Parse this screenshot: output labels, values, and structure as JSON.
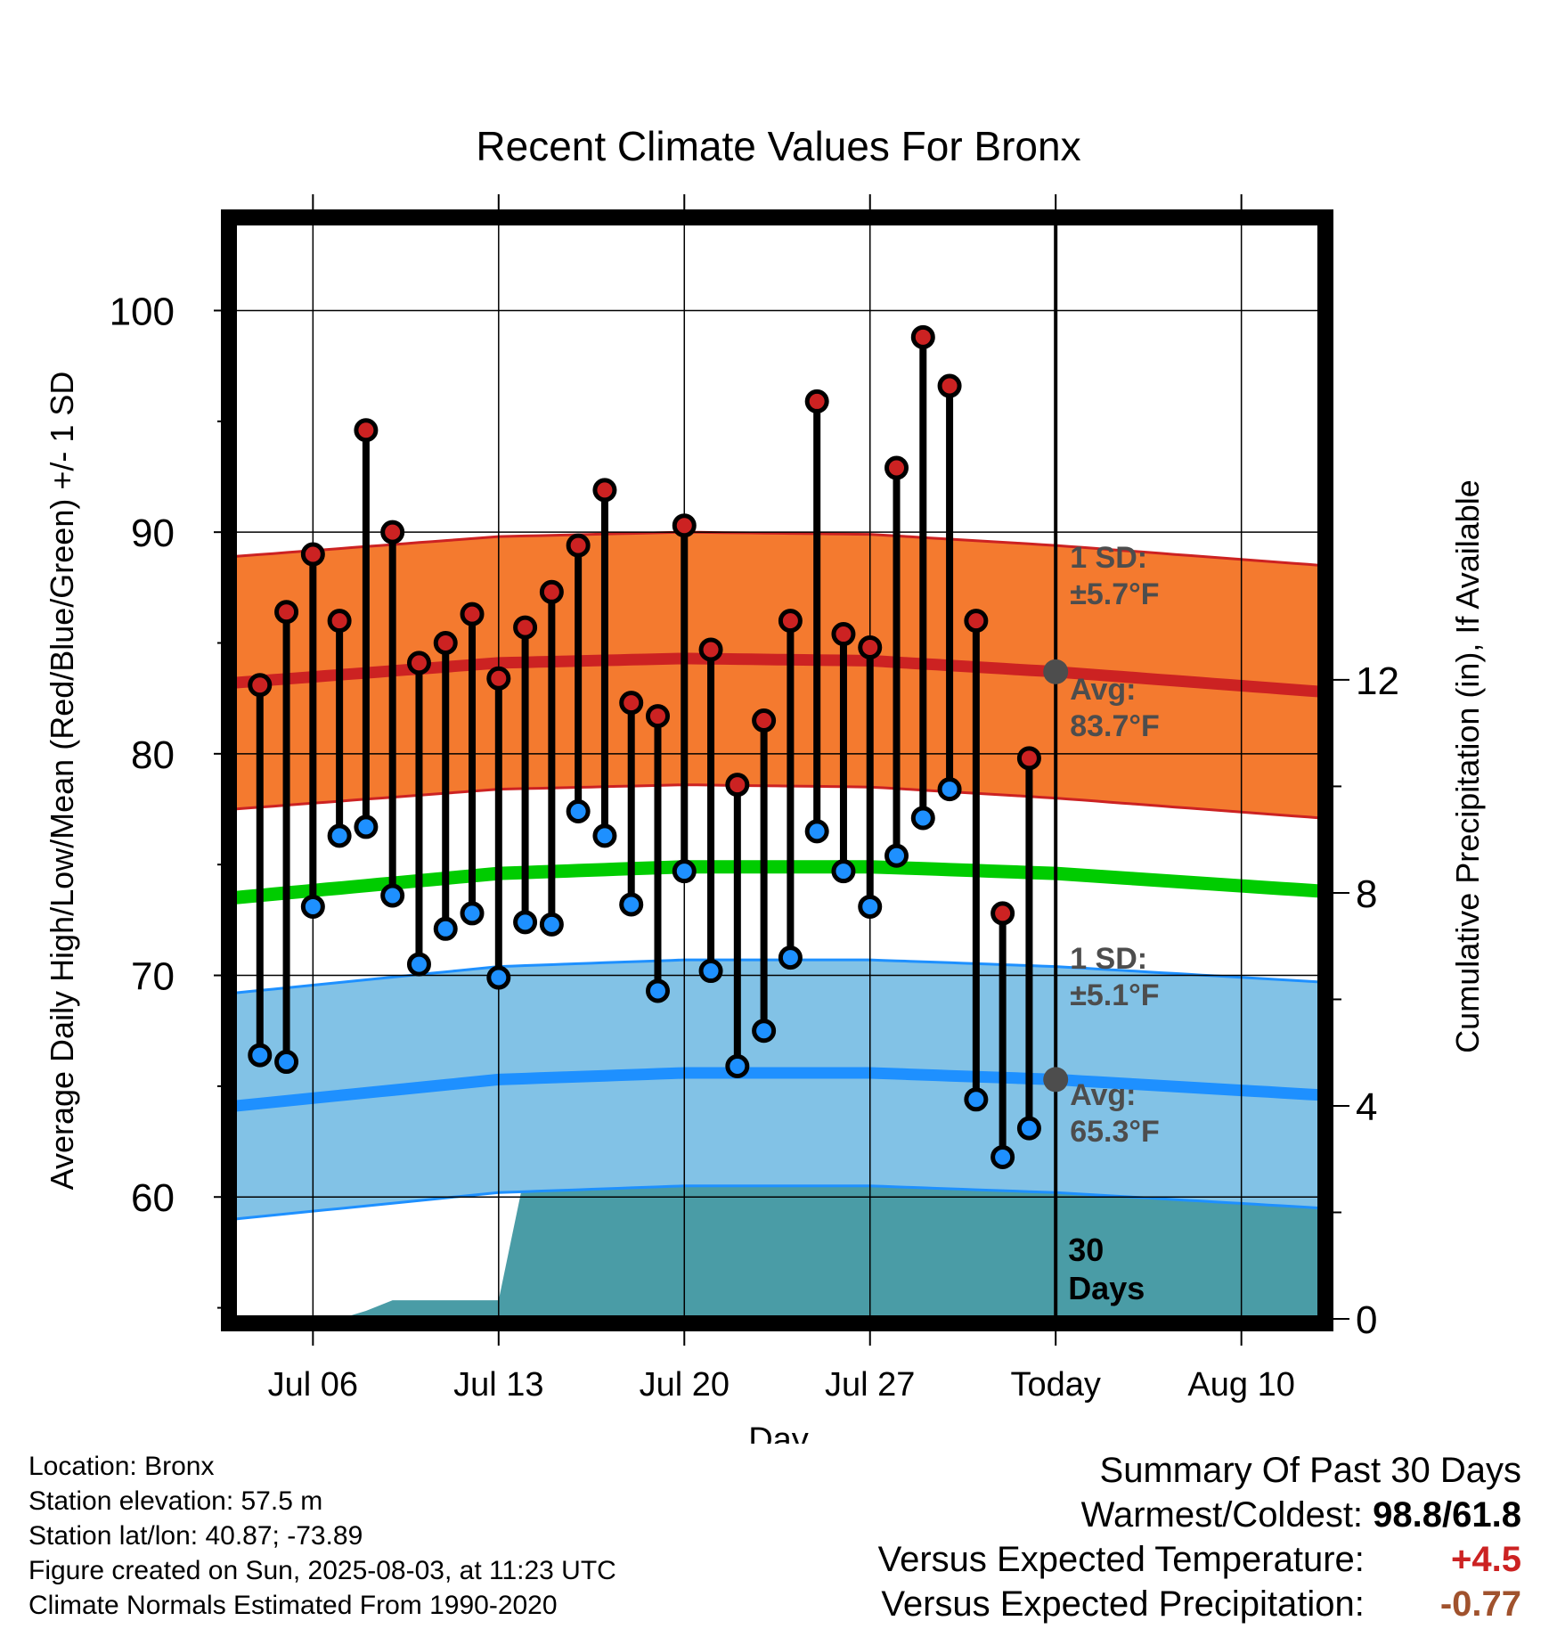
{
  "chart_data": {
    "type": "line",
    "title": "Recent Climate Values For Bronx",
    "xlabel": "Day",
    "ylabel": "Average Daily High/Low/Mean (Red/Blue/Green) +/- 1 SD",
    "y2label": "Cumulative Precipitation (in), If Available",
    "ylim": [
      54.5,
      104
    ],
    "y2lim": [
      0,
      20.6
    ],
    "yticks": [
      60,
      70,
      80,
      90,
      100
    ],
    "y2ticks": [
      0,
      4,
      8,
      12
    ],
    "xticks": [
      "Jul 06",
      "Jul 13",
      "Jul 20",
      "Jul 27",
      "Today",
      "Aug 10"
    ],
    "today_label": "30\nDays",
    "days": [
      "Jul 04",
      "Jul 05",
      "Jul 06",
      "Jul 07",
      "Jul 08",
      "Jul 09",
      "Jul 10",
      "Jul 11",
      "Jul 12",
      "Jul 13",
      "Jul 14",
      "Jul 15",
      "Jul 16",
      "Jul 17",
      "Jul 18",
      "Jul 19",
      "Jul 20",
      "Jul 21",
      "Jul 22",
      "Jul 23",
      "Jul 24",
      "Jul 25",
      "Jul 26",
      "Jul 27",
      "Jul 28",
      "Jul 29",
      "Jul 30",
      "Jul 31",
      "Aug 01",
      "Aug 02"
    ],
    "highs": [
      83.1,
      86.4,
      89.0,
      86.0,
      94.6,
      90.0,
      84.1,
      85.0,
      86.3,
      83.4,
      85.7,
      87.3,
      89.4,
      91.9,
      82.3,
      81.7,
      90.3,
      84.7,
      78.6,
      81.5,
      86.0,
      95.9,
      85.4,
      84.8,
      92.9,
      98.8,
      96.6,
      86.0,
      72.8,
      79.8
    ],
    "lows": [
      66.4,
      66.1,
      73.1,
      76.3,
      76.7,
      73.6,
      70.5,
      72.1,
      72.8,
      69.9,
      72.4,
      72.3,
      77.4,
      76.3,
      73.2,
      69.3,
      74.7,
      70.2,
      65.9,
      67.5,
      70.8,
      76.5,
      74.7,
      73.1,
      75.4,
      77.1,
      78.4,
      64.4,
      61.8,
      63.1
    ],
    "normal_high": {
      "x": [
        "Jul 03",
        "Jul 13",
        "Jul 20",
        "Jul 27",
        "Aug 03",
        "Aug 13"
      ],
      "values": [
        83.2,
        84.1,
        84.3,
        84.2,
        83.7,
        82.8
      ]
    },
    "normal_low": {
      "x": [
        "Jul 03",
        "Jul 13",
        "Jul 20",
        "Jul 27",
        "Aug 03",
        "Aug 13"
      ],
      "values": [
        64.1,
        65.3,
        65.6,
        65.6,
        65.3,
        64.6
      ]
    },
    "normal_mean": {
      "x": [
        "Jul 03",
        "Jul 13",
        "Jul 20",
        "Jul 27",
        "Aug 03",
        "Aug 13"
      ],
      "values": [
        73.5,
        74.6,
        74.9,
        74.9,
        74.6,
        73.8
      ]
    },
    "high_sd": 5.7,
    "low_sd": 5.1,
    "precip_cumulative": {
      "x": [
        "Jul 03",
        "Jul 07",
        "Jul 08",
        "Jul 09",
        "Jul 12",
        "Jul 13",
        "Jul 14",
        "Jul 20",
        "Jul 26",
        "Jul 27",
        "Jul 30",
        "Jul 31",
        "Aug 03",
        "Aug 13"
      ],
      "values": [
        0,
        0,
        0.15,
        0.35,
        0.35,
        0.35,
        2.75,
        2.75,
        2.75,
        2.85,
        2.85,
        3.2,
        3.2,
        3.2
      ]
    },
    "annotations": {
      "high_sd_label": "1 SD:",
      "high_sd_value": "±5.7°F",
      "high_avg_label": "Avg:",
      "high_avg_value": "83.7°F",
      "low_sd_label": "1 SD:",
      "low_sd_value": "±5.1°F",
      "low_avg_label": "Avg:",
      "low_avg_value": "65.3°F"
    },
    "grid": true,
    "colors": {
      "high_band": "#f47a2f",
      "high_line": "#cc2222",
      "high_dot": "#cc2222",
      "low_band": "#82c2e6",
      "low_line": "#1e90ff",
      "low_dot": "#1e90ff",
      "mean_line": "#00cc00",
      "precip": "#4a9ca6",
      "annotation": "#4d4d4d"
    }
  },
  "info": {
    "location": "Location: Bronx",
    "elevation": "Station elevation: 57.5 m",
    "latlon": "Station lat/lon: 40.87; -73.89",
    "created": "Figure created on Sun, 2025-08-03, at 11:23 UTC",
    "normals": "Climate Normals Estimated From 1990-2020"
  },
  "summary": {
    "title": "Summary Of Past 30 Days",
    "warm_cold_label": "Warmest/Coldest:",
    "warm_cold_value": "98.8/61.8",
    "temp_label": "Versus Expected Temperature:",
    "temp_value": "+4.5",
    "precip_label": "Versus Expected Precipitation:",
    "precip_value": "-0.77"
  }
}
